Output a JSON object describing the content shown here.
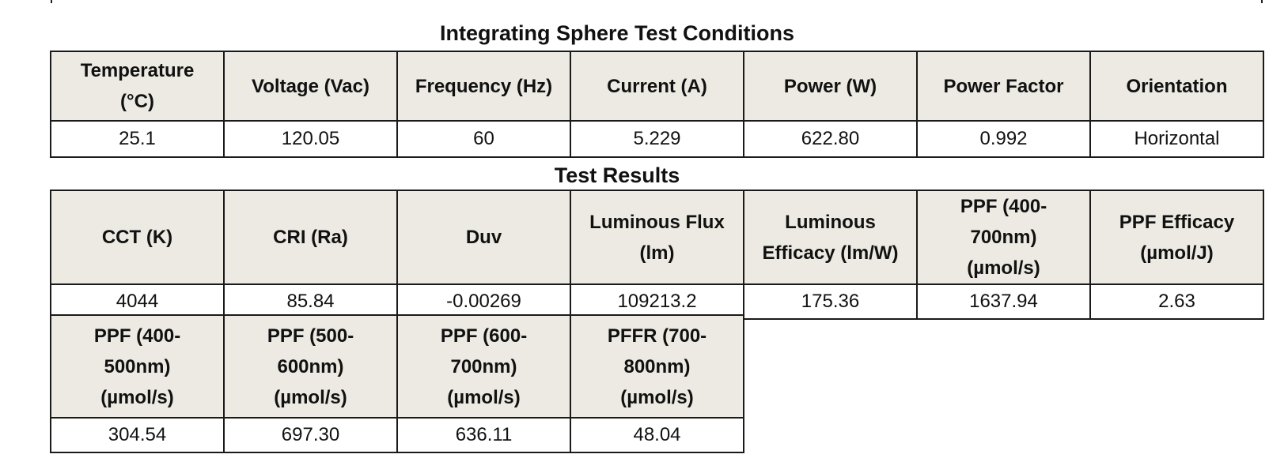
{
  "conditions": {
    "title": "Integrating Sphere Test Conditions",
    "headers": [
      "Temperature (°C)",
      "Voltage (Vac)",
      "Frequency (Hz)",
      "Current (A)",
      "Power (W)",
      "Power Factor",
      "Orientation"
    ],
    "values": [
      "25.1",
      "120.05",
      "60",
      "5.229",
      "622.80",
      "0.992",
      "Horizontal"
    ]
  },
  "results": {
    "title": "Test Results",
    "row1_headers": [
      "CCT (K)",
      "CRI (Ra)",
      "Duv",
      "Luminous Flux (lm)",
      "Luminous Efficacy (lm/W)",
      "PPF (400-700nm) (µmol/s)",
      "PPF Efficacy (µmol/J)"
    ],
    "row1_values": [
      "4044",
      "85.84",
      "-0.00269",
      "109213.2",
      "175.36",
      "1637.94",
      "2.63"
    ],
    "row2_headers": [
      "PPF (400-500nm) (µmol/s)",
      "PPF (500-600nm) (µmol/s)",
      "PPF (600-700nm) (µmol/s)",
      "PFFR (700-800nm) (µmol/s)"
    ],
    "row2_values": [
      "304.54",
      "697.30",
      "636.11",
      "48.04"
    ]
  }
}
